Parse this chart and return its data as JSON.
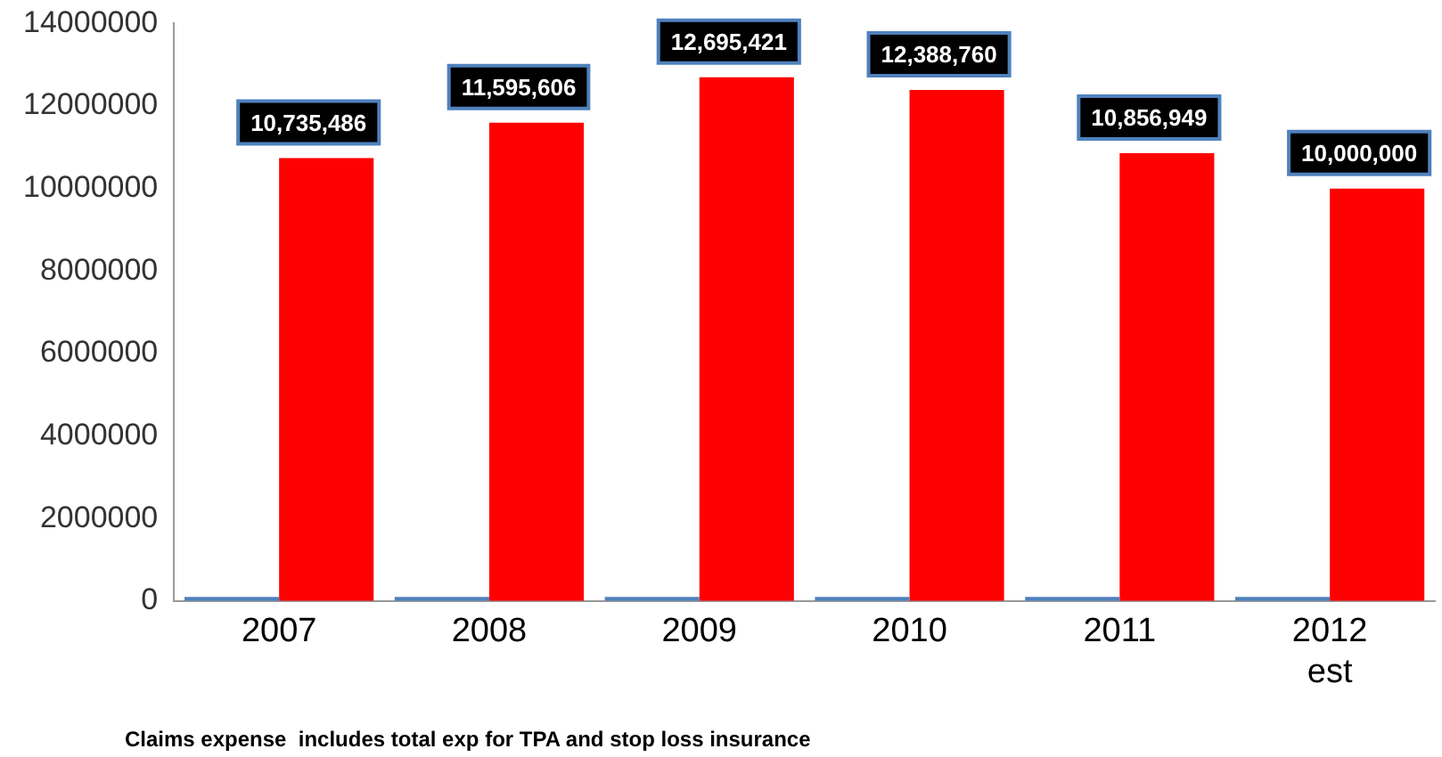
{
  "chart_data": {
    "type": "bar",
    "categories": [
      "2007",
      "2008",
      "2009",
      "2010",
      "2011",
      "2012\nest"
    ],
    "series": [
      {
        "color": "#4f81bd",
        "values": [
          100000,
          100000,
          100000,
          100000,
          100000,
          100000
        ]
      },
      {
        "color": "#ff0000",
        "values": [
          10735486,
          11595606,
          12695421,
          12388760,
          10856949,
          10000000
        ],
        "value_labels": [
          "10,735,486",
          "11,595,606",
          "12,695,421",
          "12,388,760",
          "10,856,949",
          "10,000,000"
        ]
      }
    ],
    "ylim": [
      0,
      14000000
    ],
    "yticks": [
      0,
      2000000,
      4000000,
      6000000,
      8000000,
      10000000,
      12000000,
      14000000
    ],
    "grid": false,
    "legend": false,
    "annotations": [
      "Claims expense  includes total exp for TPA and stop loss insurance"
    ]
  }
}
